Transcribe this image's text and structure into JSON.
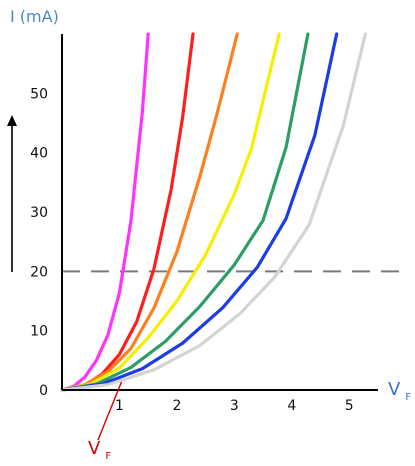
{
  "chart_data": {
    "type": "line",
    "ylabel": "I (mA)",
    "xlabel": {
      "main": "V",
      "sub": "F"
    },
    "xlim": [
      0,
      5.5
    ],
    "ylim": [
      0,
      60
    ],
    "x_ticks": [
      {
        "value": 1,
        "label": "1"
      },
      {
        "value": 2,
        "label": "2"
      },
      {
        "value": 3,
        "label": "3"
      },
      {
        "value": 4,
        "label": "4"
      },
      {
        "value": 5,
        "label": "5"
      }
    ],
    "y_ticks": [
      {
        "value": 0,
        "label": "0"
      },
      {
        "value": 10,
        "label": "10"
      },
      {
        "value": 20,
        "label": "20"
      },
      {
        "value": 30,
        "label": "30"
      },
      {
        "value": 40,
        "label": "40"
      },
      {
        "value": 50,
        "label": "50"
      }
    ],
    "reference_line": {
      "y": 20,
      "style": "dashed",
      "color": "#7a7a7a"
    },
    "annotation": {
      "main": "V",
      "sub": "F",
      "color": "#d80000",
      "target_x": 1.0
    },
    "grid": false,
    "series": [
      {
        "color": "#ff33ff",
        "x": [
          0,
          0.2,
          0.4,
          0.6,
          0.8,
          1.0,
          1.2,
          1.4,
          1.5
        ],
        "y": [
          0,
          0.6,
          2.2,
          5.0,
          9.3,
          16.4,
          28.5,
          47.0,
          60.0
        ]
      },
      {
        "color": "#ff1e1e",
        "x": [
          0,
          0.4,
          0.7,
          1.0,
          1.3,
          1.6,
          1.9,
          2.1,
          2.28
        ],
        "y": [
          0,
          0.8,
          2.7,
          6.0,
          11.5,
          20.4,
          33.8,
          46.0,
          60.0
        ]
      },
      {
        "color": "#ff7f1e",
        "x": [
          0,
          0.4,
          0.8,
          1.2,
          1.6,
          2.0,
          2.4,
          2.7,
          3.05
        ],
        "y": [
          0,
          0.9,
          3.1,
          7.0,
          13.8,
          23.3,
          36.0,
          46.6,
          60.0
        ]
      },
      {
        "color": "#f4f000",
        "x": [
          0,
          0.5,
          1.0,
          1.5,
          2.0,
          2.5,
          3.0,
          3.3,
          3.78
        ],
        "y": [
          0,
          1.0,
          3.7,
          8.8,
          15.0,
          22.8,
          33.0,
          40.8,
          60.0
        ]
      },
      {
        "color": "#2b9d66",
        "x": [
          0,
          0.6,
          1.2,
          1.8,
          2.4,
          3.0,
          3.5,
          3.9,
          4.28
        ],
        "y": [
          0,
          1.0,
          3.8,
          8.2,
          14.1,
          21.1,
          28.6,
          40.9,
          60.0
        ]
      },
      {
        "color": "#1b3ce6",
        "x": [
          0,
          0.7,
          1.4,
          2.1,
          2.8,
          3.4,
          3.9,
          4.4,
          4.78
        ],
        "y": [
          0,
          1.0,
          3.6,
          7.9,
          13.9,
          20.7,
          28.9,
          42.9,
          60.0
        ]
      },
      {
        "color": "#d4d4d4",
        "x": [
          0,
          0.8,
          1.6,
          2.4,
          3.1,
          3.7,
          4.3,
          4.9,
          5.28
        ],
        "y": [
          0,
          0.9,
          3.4,
          7.5,
          12.9,
          19.0,
          27.8,
          44.7,
          60.0
        ]
      }
    ]
  }
}
